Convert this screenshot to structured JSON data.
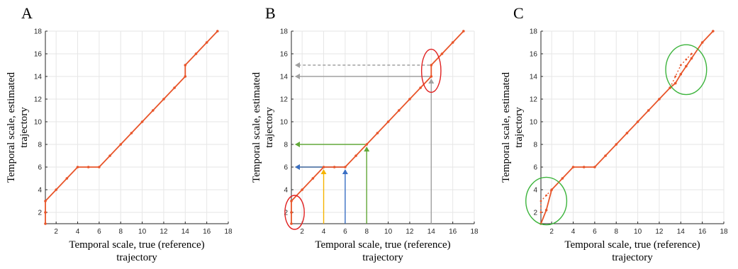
{
  "colors": {
    "series": "#e8552a",
    "ring_red": "#e02020",
    "ring_green": "#3cb43c",
    "arrow_yellow": "#f5b400",
    "arrow_blue": "#3a6fc4",
    "arrow_green": "#62a83a",
    "arrow_gray": "#a0a0a0",
    "grid": "#e6e6e6",
    "axis": "#262626"
  },
  "chart_data": [
    {
      "panel_label": "A",
      "type": "line",
      "xlabel": [
        "Temporal scale, true (reference)",
        "trajectory"
      ],
      "ylabel": [
        "Temporal scale, estimated",
        "trajectory"
      ],
      "xlim": [
        1,
        18
      ],
      "ylim": [
        1,
        18
      ],
      "xticks": [
        2,
        4,
        6,
        8,
        10,
        12,
        14,
        16,
        18
      ],
      "yticks": [
        2,
        4,
        6,
        8,
        10,
        12,
        14,
        16,
        18
      ],
      "grid": true,
      "series": [
        {
          "x": [
            1,
            1,
            1,
            2,
            3,
            4,
            5,
            6,
            7,
            8,
            9,
            10,
            11,
            12,
            13,
            14,
            14,
            15,
            16,
            17
          ],
          "y": [
            1,
            2,
            3,
            4,
            5,
            6,
            6,
            6,
            7,
            8,
            9,
            10,
            11,
            12,
            13,
            14,
            15,
            16,
            17,
            18
          ],
          "style": "solid"
        }
      ]
    },
    {
      "panel_label": "B",
      "type": "line",
      "xlabel": [
        "Temporal scale, true (reference)",
        "trajectory"
      ],
      "ylabel": [
        "Temporal scale, estimated",
        "trajectory"
      ],
      "xlim": [
        1,
        18
      ],
      "ylim": [
        1,
        18
      ],
      "xticks": [
        2,
        4,
        6,
        8,
        10,
        12,
        14,
        16,
        18
      ],
      "yticks": [
        2,
        4,
        6,
        8,
        10,
        12,
        14,
        16,
        18
      ],
      "grid": true,
      "series": [
        {
          "x": [
            1,
            1,
            1,
            2,
            3,
            4,
            5,
            6,
            7,
            8,
            9,
            10,
            11,
            12,
            13,
            14,
            14,
            15,
            16,
            17
          ],
          "y": [
            1,
            2,
            3,
            4,
            5,
            6,
            6,
            6,
            7,
            8,
            9,
            10,
            11,
            12,
            13,
            14,
            15,
            16,
            17,
            18
          ],
          "style": "solid"
        }
      ],
      "annotations": {
        "mappings": [
          {
            "x": 4,
            "y": 6,
            "color": "arrow_yellow",
            "style": "solid"
          },
          {
            "x": 6,
            "y": 6,
            "color": "arrow_blue",
            "style": "solid"
          },
          {
            "x": 8,
            "y": 8,
            "color": "arrow_green",
            "style": "solid"
          },
          {
            "x": 14,
            "y": 14,
            "color": "arrow_gray",
            "style": "solid"
          },
          {
            "x": 14,
            "y": 15,
            "color": "arrow_gray",
            "style": "dashed"
          }
        ],
        "ellipses": [
          {
            "cx": 1.3,
            "cy": 2,
            "rx": 0.9,
            "ry": 1.5,
            "color": "ring_red"
          },
          {
            "cx": 14,
            "cy": 14.5,
            "rx": 0.9,
            "ry": 1.9,
            "color": "ring_red"
          }
        ]
      }
    },
    {
      "panel_label": "C",
      "type": "line",
      "xlabel": [
        "Temporal scale, true (reference)",
        "trajectory"
      ],
      "ylabel": [
        "Temporal scale, estimated",
        "trajectory"
      ],
      "xlim": [
        1,
        18
      ],
      "ylim": [
        1,
        18
      ],
      "xticks": [
        2,
        4,
        6,
        8,
        10,
        12,
        14,
        16,
        18
      ],
      "yticks": [
        2,
        4,
        6,
        8,
        10,
        12,
        14,
        16,
        18
      ],
      "grid": true,
      "series": [
        {
          "x": [
            1,
            1.5,
            2,
            3,
            4,
            5,
            6,
            7,
            8,
            9,
            10,
            11,
            12,
            13,
            13.5,
            14,
            14.5,
            15,
            16,
            17
          ],
          "y": [
            1,
            2.2,
            4,
            5,
            6,
            6,
            6,
            7,
            8,
            9,
            10,
            11,
            12,
            13,
            13.4,
            14.2,
            14.9,
            15.6,
            17,
            18
          ],
          "style": "solid"
        },
        {
          "x": [
            1,
            1,
            1.5,
            2
          ],
          "y": [
            2,
            3,
            3.5,
            4
          ],
          "style": "dotted"
        },
        {
          "x": [
            13,
            13.5,
            14,
            14.5,
            15
          ],
          "y": [
            13,
            14,
            15,
            15.5,
            16
          ],
          "style": "dotted"
        }
      ],
      "annotations": {
        "ellipses": [
          {
            "cx": 1.5,
            "cy": 3,
            "rx": 1.9,
            "ry": 2.1,
            "color": "ring_green"
          },
          {
            "cx": 14.5,
            "cy": 14.6,
            "rx": 1.9,
            "ry": 2.2,
            "color": "ring_green"
          }
        ]
      }
    }
  ]
}
